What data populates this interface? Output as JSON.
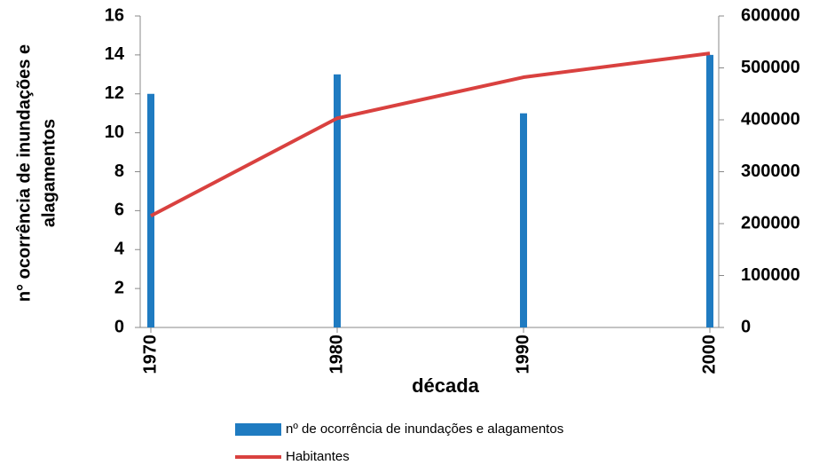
{
  "chart_data": {
    "type": "bar-line",
    "ylabel": [
      "n° ocorrência de inundações e",
      "alagamentos"
    ],
    "xlabel": "década",
    "categories": [
      "1970",
      "1980",
      "1990",
      "2000"
    ],
    "series": [
      {
        "name": "nº de ocorrência de inundações e alagamentos",
        "color": "#1f7bc1",
        "type": "bar",
        "values": [
          12,
          13,
          11,
          14
        ]
      },
      {
        "name": "Habitantes",
        "color": "#d9413f",
        "type": "line",
        "axis": "y2",
        "values": [
          215000,
          403000,
          482000,
          528000
        ]
      }
    ],
    "ylim": [
      0,
      16
    ],
    "yticks": [
      0,
      2,
      4,
      6,
      8,
      10,
      12,
      14,
      16
    ],
    "y2lim": [
      0,
      600000
    ],
    "y2ticks": [
      0,
      100000,
      200000,
      300000,
      400000,
      500000,
      600000
    ],
    "grid": false
  }
}
